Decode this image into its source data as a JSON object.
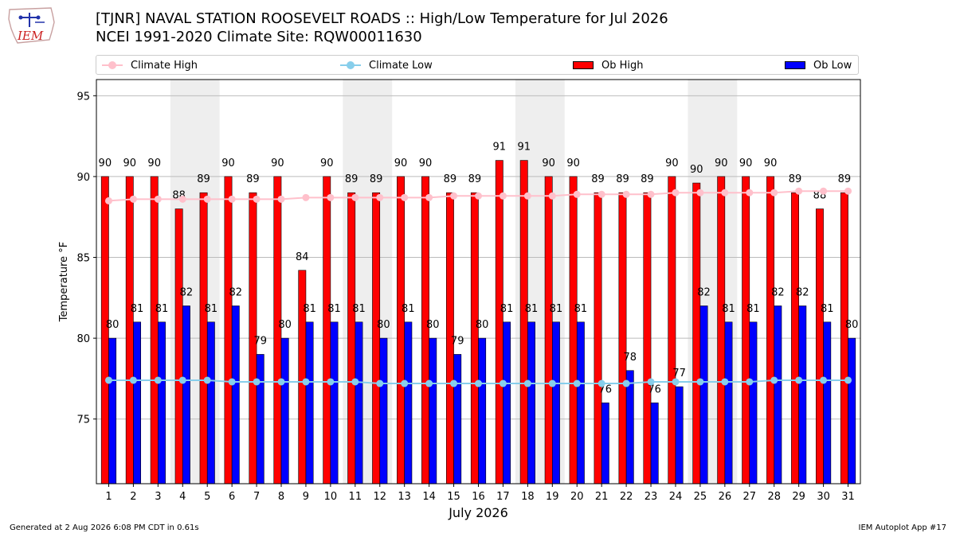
{
  "header": {
    "title_line1": "[TJNR] NAVAL STATION ROOSEVELT ROADS :: High/Low Temperature for Jul 2026",
    "title_line2": "NCEI 1991-2020 Climate Site: RQW00011630",
    "logo_text": "IEM"
  },
  "legend": {
    "climate_high": "Climate High",
    "climate_low": "Climate Low",
    "ob_high": "Ob High",
    "ob_low": "Ob Low"
  },
  "footer": {
    "generated": "Generated at 2 Aug 2026 6:08 PM CDT in 0.61s",
    "app": "IEM Autoplot App #17"
  },
  "colors": {
    "ob_high": "#ff0000",
    "ob_low": "#0000ff",
    "climate_high": "#ffc0cb",
    "climate_low": "#87ceeb",
    "weekend_band": "#eeeeee",
    "grid": "#bbbbbb"
  },
  "chart_data": {
    "type": "bar",
    "xlabel": "July 2026",
    "ylabel": "Temperature °F",
    "ylim": [
      71,
      96
    ],
    "yticks": [
      75,
      80,
      85,
      90,
      95
    ],
    "grid": true,
    "legend_position": "top",
    "categories": [
      1,
      2,
      3,
      4,
      5,
      6,
      7,
      8,
      9,
      10,
      11,
      12,
      13,
      14,
      15,
      16,
      17,
      18,
      19,
      20,
      21,
      22,
      23,
      24,
      25,
      26,
      27,
      28,
      29,
      30,
      31
    ],
    "weekend_bands": [
      [
        4,
        5
      ],
      [
        11,
        12
      ],
      [
        18,
        19
      ],
      [
        25,
        26
      ]
    ],
    "series": [
      {
        "name": "Ob High",
        "type": "bar",
        "values": [
          90,
          90,
          90,
          88,
          89,
          90,
          89,
          90,
          84.2,
          90,
          89,
          89,
          90,
          90,
          89,
          89,
          91,
          91,
          90,
          90,
          89,
          89,
          89,
          90,
          89.6,
          90,
          90,
          90,
          89,
          88,
          89
        ],
        "labels": [
          "90",
          "90",
          "90",
          "88",
          "89",
          "90",
          "89",
          "90",
          "84",
          "90",
          "89",
          "89",
          "90",
          "90",
          "89",
          "89",
          "91",
          "91",
          "90",
          "90",
          "89",
          "89",
          "89",
          "90",
          "90",
          "90",
          "90",
          "90",
          "89",
          "88",
          "89"
        ]
      },
      {
        "name": "Ob Low",
        "type": "bar",
        "values": [
          80,
          81,
          81,
          82,
          81,
          82,
          79,
          80,
          81,
          81,
          81,
          80,
          81,
          80,
          79,
          80,
          81,
          81,
          81,
          81,
          76,
          78,
          76,
          77,
          82,
          81,
          81,
          82,
          82,
          81,
          80
        ],
        "labels": [
          "80",
          "81",
          "81",
          "82",
          "81",
          "82",
          "79",
          "80",
          "81",
          "81",
          "81",
          "80",
          "81",
          "80",
          "79",
          "80",
          "81",
          "81",
          "81",
          "81",
          "76",
          "78",
          "76",
          "77",
          "82",
          "81",
          "81",
          "82",
          "82",
          "81",
          "80"
        ]
      },
      {
        "name": "Climate High",
        "type": "line",
        "values": [
          88.5,
          88.6,
          88.6,
          88.6,
          88.6,
          88.6,
          88.6,
          88.6,
          88.7,
          88.7,
          88.7,
          88.7,
          88.7,
          88.7,
          88.8,
          88.8,
          88.8,
          88.8,
          88.8,
          88.9,
          88.9,
          88.9,
          88.9,
          89.0,
          89.0,
          89.0,
          89.0,
          89.0,
          89.1,
          89.1,
          89.1
        ]
      },
      {
        "name": "Climate Low",
        "type": "line",
        "values": [
          77.4,
          77.4,
          77.4,
          77.4,
          77.4,
          77.3,
          77.3,
          77.3,
          77.3,
          77.3,
          77.3,
          77.2,
          77.2,
          77.2,
          77.2,
          77.2,
          77.2,
          77.2,
          77.2,
          77.2,
          77.2,
          77.2,
          77.3,
          77.3,
          77.3,
          77.3,
          77.3,
          77.4,
          77.4,
          77.4,
          77.4
        ]
      }
    ]
  }
}
